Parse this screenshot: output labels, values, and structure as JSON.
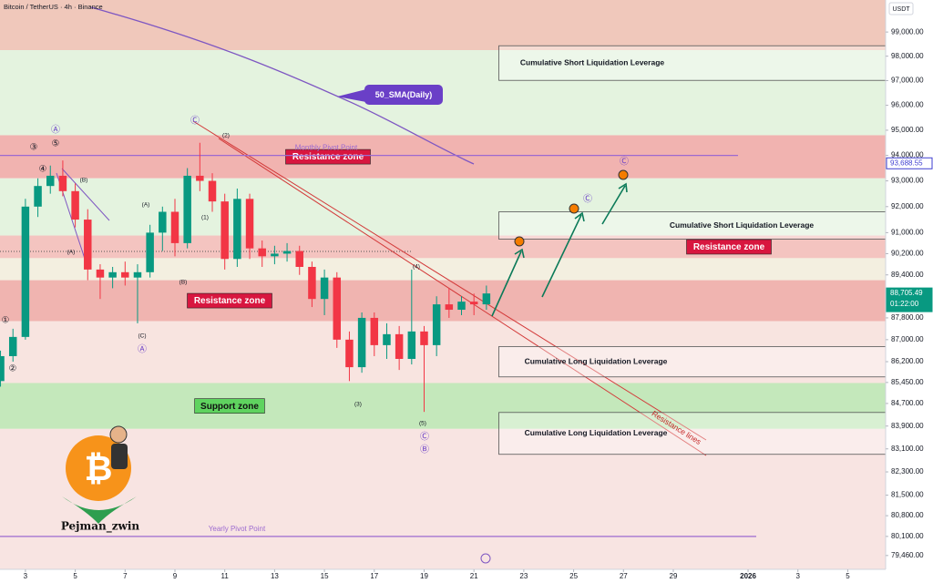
{
  "chart_data": {
    "type": "candlestick",
    "title": "Bitcoin / TetherUS · 4h · Binance",
    "y_unit": "USDT",
    "log_scale": true,
    "xlim": [
      1.98,
      37.52
    ],
    "ylim": [
      79000,
      100340
    ],
    "xticks": [
      3,
      5,
      7,
      9,
      11,
      13,
      15,
      17,
      19,
      21,
      23,
      25,
      27,
      29,
      {
        "value": 32,
        "label": "2026"
      },
      {
        "value": 34,
        "label": "3"
      },
      {
        "value": 36,
        "label": "5"
      }
    ],
    "yticks": [
      {
        "value": 99000,
        "label": "99,000.00"
      },
      {
        "value": 98000,
        "label": "98,000.00"
      },
      {
        "value": 97000,
        "label": "97,000.00"
      },
      {
        "value": 96000,
        "label": "96,000.00"
      },
      {
        "value": 95000,
        "label": "95,000.00"
      },
      {
        "value": 94000,
        "label": "94,000.00"
      },
      {
        "value": 93000,
        "label": "93,000.00"
      },
      {
        "value": 92000,
        "label": "92,000.00"
      },
      {
        "value": 91000,
        "label": "91,000.00"
      },
      {
        "value": 90200,
        "label": "90,200.00"
      },
      {
        "value": 89400,
        "label": "89,400.00"
      },
      {
        "value": 87800,
        "label": "87,800.00"
      },
      {
        "value": 87000,
        "label": "87,000.00"
      },
      {
        "value": 86200,
        "label": "86,200.00"
      },
      {
        "value": 85450,
        "label": "85,450.00"
      },
      {
        "value": 84700,
        "label": "84,700.00"
      },
      {
        "value": 83900,
        "label": "83,900.00"
      },
      {
        "value": 83100,
        "label": "83,100.00"
      },
      {
        "value": 82300,
        "label": "82,300.00"
      },
      {
        "value": 81500,
        "label": "81,500.00"
      },
      {
        "value": 80800,
        "label": "80,800.00"
      },
      {
        "value": 80100,
        "label": "80,100.00"
      },
      {
        "value": 79460,
        "label": "79,460.00"
      }
    ],
    "up_color": "#089981",
    "down_color": "#f23645",
    "candles": {
      "x": [
        2.0,
        2.5,
        3.0,
        3.5,
        4.0,
        4.5,
        5.0,
        5.5,
        6.0,
        6.5,
        7.0,
        7.5,
        8.0,
        8.5,
        9.0,
        9.5,
        10.0,
        10.5,
        11.0,
        11.5,
        12.0,
        12.5,
        13.0,
        13.5,
        14.0,
        14.5,
        15.0,
        15.5,
        16.0,
        16.5,
        17.0,
        17.5,
        18.0,
        18.5,
        19.0,
        19.5,
        20.0,
        20.5,
        21.0,
        21.5
      ],
      "open": [
        85500,
        86400,
        87100,
        92000,
        92800,
        93200,
        92600,
        91500,
        89600,
        89300,
        89500,
        89300,
        89500,
        91000,
        91800,
        90600,
        93200,
        93000,
        92200,
        90000,
        92300,
        90400,
        90100,
        90200,
        90300,
        89700,
        88500,
        89300,
        87000,
        86000,
        87800,
        86800,
        87200,
        86300,
        87300,
        86800,
        88300,
        88100,
        88400,
        88300
      ],
      "high": [
        86600,
        87400,
        92300,
        93100,
        93600,
        93800,
        92900,
        91900,
        89800,
        89700,
        89900,
        89800,
        91300,
        92000,
        92300,
        93500,
        94500,
        93300,
        92500,
        92700,
        92500,
        90700,
        90500,
        90600,
        90500,
        89900,
        89600,
        89500,
        87300,
        88000,
        88000,
        87600,
        87500,
        89600,
        87500,
        88600,
        88900,
        88600,
        88700,
        89000
      ],
      "low": [
        85300,
        86200,
        87000,
        91600,
        92500,
        92400,
        91200,
        89200,
        88500,
        88900,
        89000,
        87600,
        89300,
        90300,
        90100,
        90400,
        92600,
        91800,
        89600,
        89700,
        90000,
        89700,
        89800,
        89900,
        89400,
        88200,
        87900,
        86700,
        85500,
        85800,
        86400,
        86300,
        85900,
        86100,
        84400,
        86400,
        87800,
        87900,
        87900,
        88100
      ],
      "close": [
        86400,
        87100,
        92000,
        92800,
        93200,
        92600,
        91500,
        89600,
        89300,
        89500,
        89300,
        89500,
        91000,
        91800,
        90600,
        93200,
        93000,
        92200,
        90000,
        92300,
        90400,
        90100,
        90200,
        90300,
        89700,
        88500,
        89300,
        87000,
        86000,
        87800,
        86800,
        87200,
        86300,
        87300,
        86800,
        88300,
        88100,
        88400,
        88300,
        88705
      ]
    },
    "zones": [
      {
        "low": 98250,
        "high": 100340,
        "color": "#f0c8bb"
      },
      {
        "low": 94800,
        "high": 98250,
        "color": "#e4f3df"
      },
      {
        "low": 93100,
        "high": 94800,
        "color": "#f1b3b0",
        "label": "Resistance zone"
      },
      {
        "low": 90890,
        "high": 93100,
        "color": "#e4f3df"
      },
      {
        "low": 90030,
        "high": 90890,
        "color": "#f4c4c0",
        "label": "Resistance zone"
      },
      {
        "low": 89200,
        "high": 90030,
        "color": "#f3efe0"
      },
      {
        "low": 87680,
        "high": 89200,
        "color": "#f0b4b0",
        "label": "Resistance zone"
      },
      {
        "low": 85430,
        "high": 87680,
        "color": "#f8e4e0"
      },
      {
        "low": 83800,
        "high": 85430,
        "color": "#c4e8bb",
        "label": "Support zone"
      },
      {
        "low": 79000,
        "high": 83800,
        "color": "#f8e4e2"
      }
    ],
    "boxes": [
      {
        "label": "Cumulative Short Liquidation Leverage",
        "low": 97010,
        "high": 98430
      },
      {
        "label": "Cumulative Short Liquidation Leverage",
        "low": 90750,
        "high": 91800
      },
      {
        "label": "Cumulative Long Liquidation Leverage",
        "low": 85650,
        "high": 86750
      },
      {
        "label": "Cumulative Long Liquidation Leverage",
        "low": 82910,
        "high": 84380
      }
    ],
    "levels": [
      {
        "name": "Monthly Pivot Point",
        "value": 94000,
        "color": "#9c6ad0"
      },
      {
        "name": "Yearly Pivot Point",
        "value": 80100,
        "color": "#9c6ad0"
      }
    ],
    "price_labels": [
      {
        "value": 93688.55,
        "label": "93,688.55",
        "color": "#3f3fd0"
      },
      {
        "value": 88705.49,
        "label": "88,705.49",
        "color": "#089981"
      }
    ],
    "countdown": "01:22:00",
    "sma_label": "50_SMA(Daily)",
    "resistance_lines_label": "Resistance lines",
    "author": "Pejman_zwin",
    "wave_labels": [
      "Ⓐ",
      "⑤",
      "③",
      "④",
      "①",
      "②",
      "(B)",
      "(A)",
      "(A)",
      "(B)",
      "(C)",
      "Ⓐ",
      "(1)",
      "(2)",
      "Ⓒ",
      "(3)",
      "(4)",
      "(5)",
      "Ⓒ",
      "Ⓑ",
      "Ⓒ",
      "Ⓒ"
    ]
  }
}
